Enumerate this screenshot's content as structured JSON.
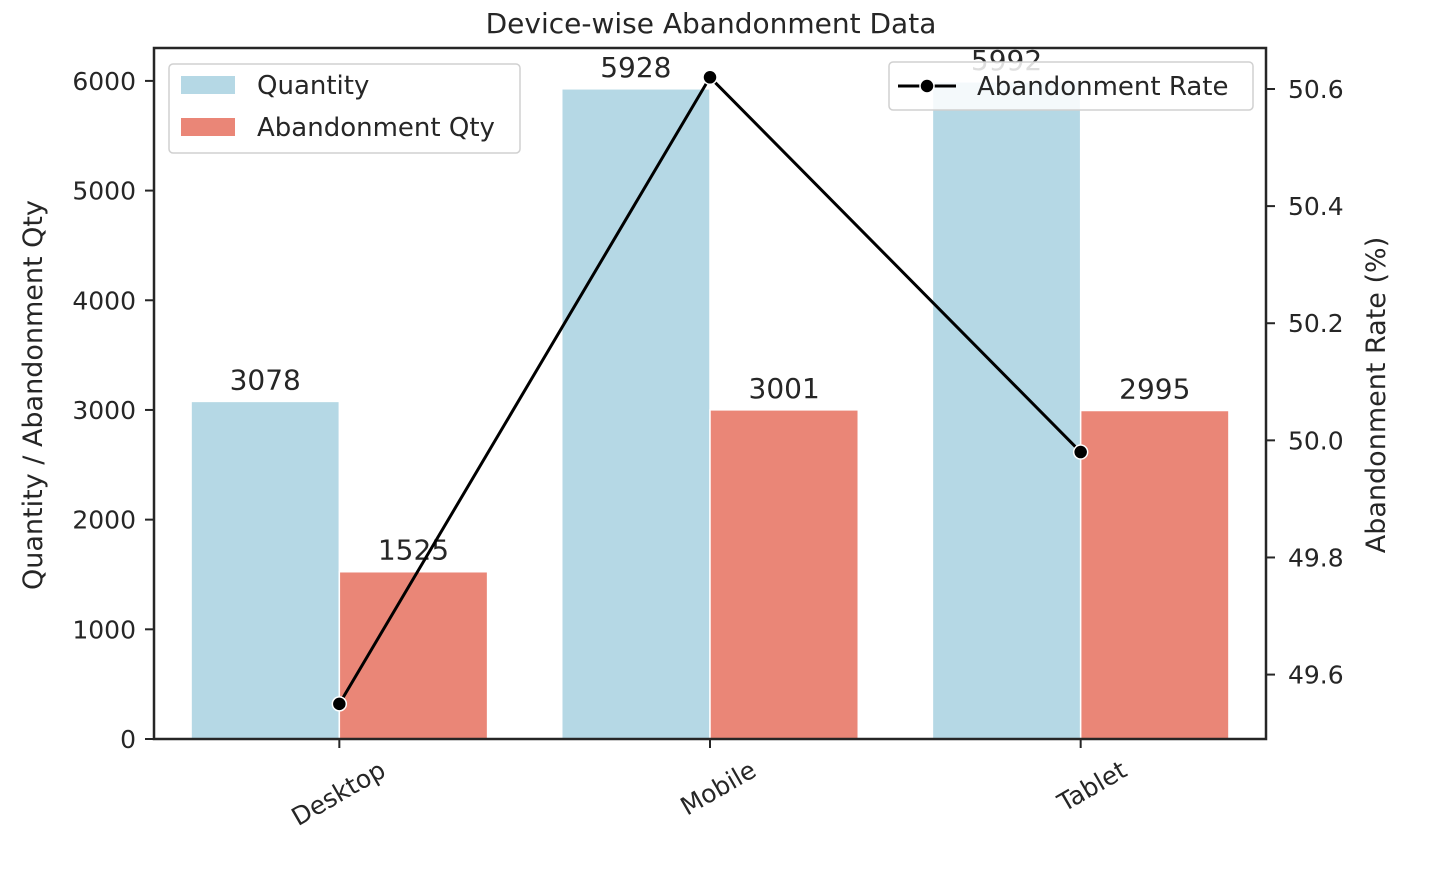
{
  "chart_data": {
    "type": "bar",
    "title": "Device-wise Abandonment Data",
    "categories": [
      "Desktop",
      "Mobile",
      "Tablet"
    ],
    "ylabel": "Quantity / Abandonment Qty",
    "y2label": "Abandonment Rate (%)",
    "ylim": [
      0,
      6300
    ],
    "y2lim": [
      49.49,
      50.67
    ],
    "yticks": [
      0,
      1000,
      2000,
      3000,
      4000,
      5000,
      6000
    ],
    "y2ticks": [
      "49.6",
      "49.8",
      "50.0",
      "50.2",
      "50.4",
      "50.6"
    ],
    "series": [
      {
        "name": "Quantity",
        "type": "bar",
        "axis": "left",
        "color": "#b5d8e5",
        "values": [
          3078,
          5928,
          5992
        ]
      },
      {
        "name": "Abandonment Qty",
        "type": "bar",
        "axis": "left",
        "color": "#ea8677",
        "values": [
          1525,
          3001,
          2995
        ]
      },
      {
        "name": "Abandonment Rate",
        "type": "line",
        "axis": "right",
        "color": "#000000",
        "values": [
          49.55,
          50.62,
          49.98
        ]
      }
    ],
    "legends": [
      {
        "placement": "upper-left",
        "entries": [
          "Quantity",
          "Abandonment Qty"
        ]
      },
      {
        "placement": "upper-right",
        "entries": [
          "Abandonment Rate"
        ]
      }
    ],
    "grid": false
  }
}
